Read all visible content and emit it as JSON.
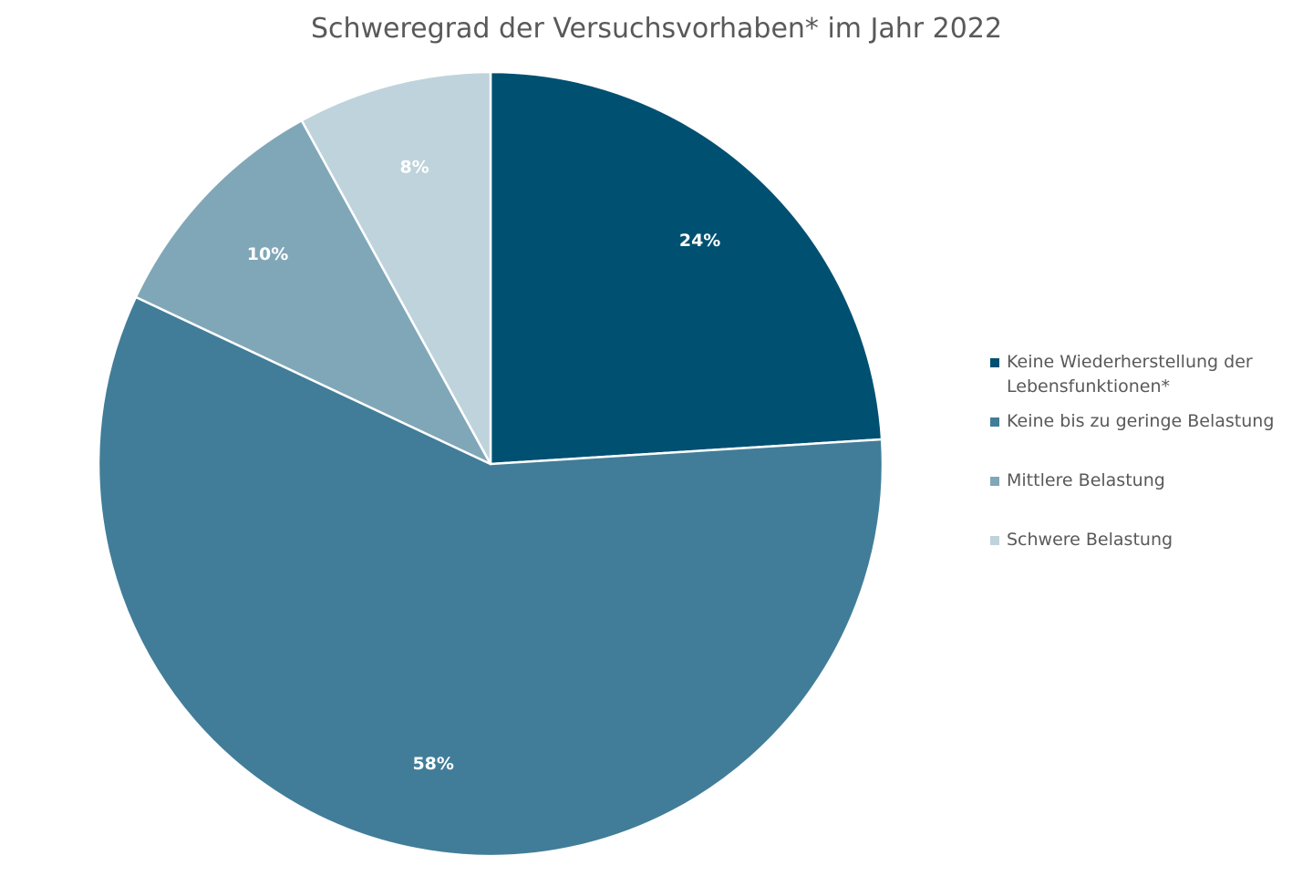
{
  "chart_data": {
    "type": "pie",
    "title": "Schweregrad der Versuchsvorhaben* im  Jahr 2022",
    "categories": [
      "Keine Wiederherstellung der Lebensfunktionen*",
      "Keine bis zu geringe Belastung",
      "Mittlere Belastung",
      "Schwere Belastung"
    ],
    "values": [
      24,
      58,
      10,
      8
    ],
    "labels": [
      "24%",
      "58%",
      "10%",
      "8%"
    ],
    "colors": [
      "#005072",
      "#417d98",
      "#80a7b8",
      "#bfd3dc"
    ],
    "legend_position": "right",
    "legend": [
      {
        "line1": "Keine Wiederherstellung der",
        "line2": "Lebensfunktionen*"
      },
      {
        "line1": "Keine bis zu geringe Belastung"
      },
      {
        "line1": "Mittlere Belastung"
      },
      {
        "line1": "Schwere Belastung"
      }
    ]
  }
}
